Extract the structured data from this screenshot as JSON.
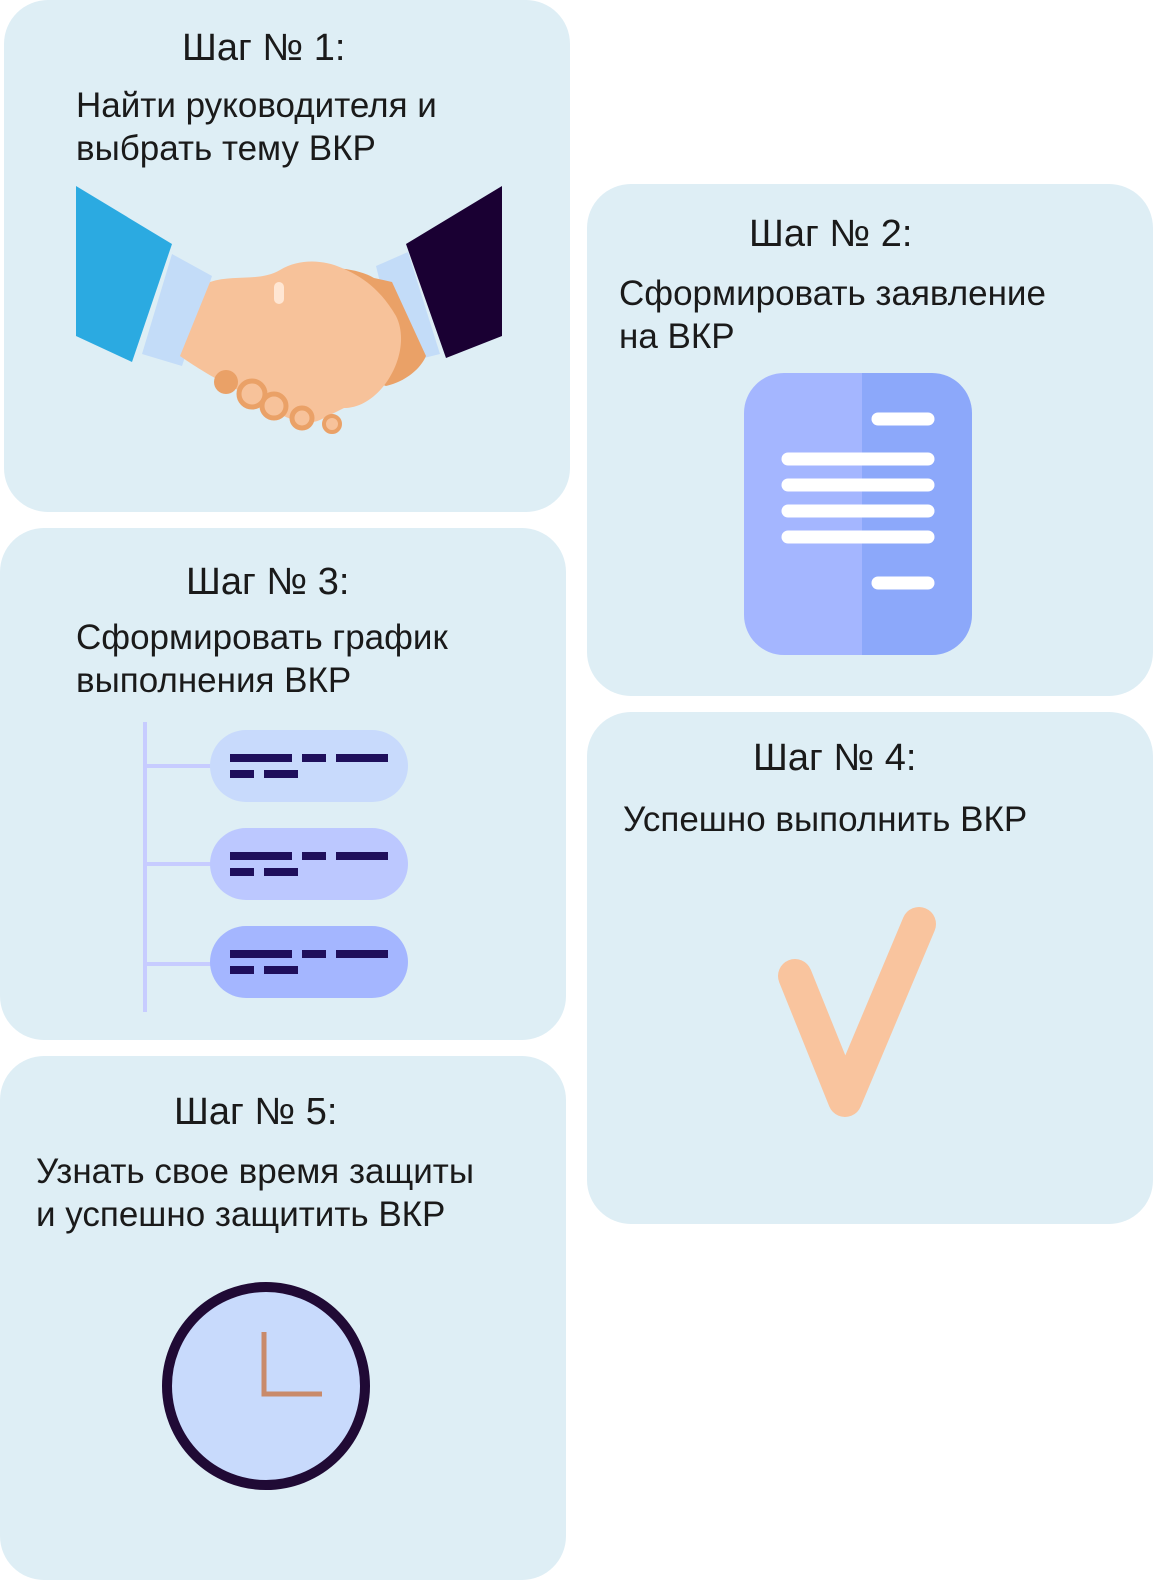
{
  "steps": [
    {
      "title": "Шаг № 1:",
      "text": "Найти руководителя и\nвыбрать тему ВКР",
      "icon": "handshake-icon"
    },
    {
      "title": "Шаг № 2:",
      "text": "Сформировать заявление\nна ВКР",
      "icon": "document-icon"
    },
    {
      "title": "Шаг № 3:",
      "text": "Сформировать график\nвыполнения ВКР",
      "icon": "schedule-list-icon"
    },
    {
      "title": "Шаг № 4:",
      "text": "Успешно выполнить ВКР",
      "icon": "checkmark-icon"
    },
    {
      "title": "Шаг № 5:",
      "text": "Узнать свое время защиты\nи успешно защитить ВКР",
      "icon": "clock-icon"
    }
  ],
  "colors": {
    "card_background": "#deeef5",
    "skin_light": "#f7c29a",
    "skin_dark": "#eaa167",
    "sleeve_blue": "#2baae1",
    "sleeve_navy": "#1a0033",
    "cuff": "#c3dcf8",
    "doc_left": "#a4b6ff",
    "doc_right": "#8ca8fa",
    "schedule_line": "#c7ccff",
    "schedule_text": "#1f0f5c",
    "check": "#f9c49e",
    "clock_face": "#c8dafc",
    "clock_rim": "#200a35",
    "clock_hands": "#c98a6a"
  }
}
